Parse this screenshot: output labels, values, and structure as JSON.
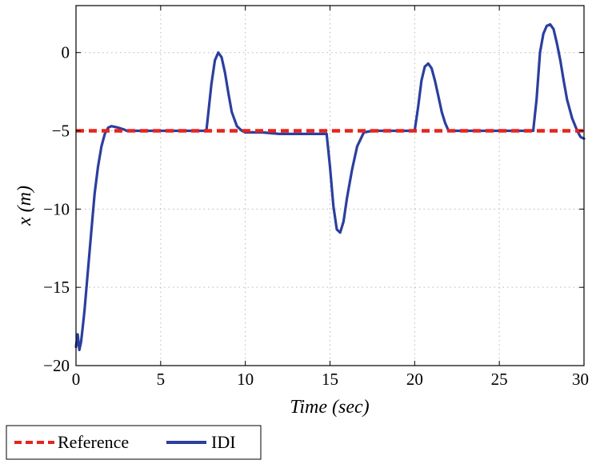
{
  "chart_data": {
    "type": "line",
    "title": "",
    "xlabel": "Time (sec)",
    "ylabel": "x (m)",
    "xlim": [
      0,
      30
    ],
    "ylim": [
      -20,
      3
    ],
    "xticks": [
      0,
      5,
      10,
      15,
      20,
      25,
      30
    ],
    "yticks": [
      -20,
      -15,
      -10,
      -5,
      0
    ],
    "xtick_labels": [
      "0",
      "5",
      "10",
      "15",
      "20",
      "25",
      "30"
    ],
    "ytick_labels": [
      "−20",
      "−15",
      "−10",
      "−5",
      "0"
    ],
    "grid": true,
    "legend_position": "bottom-left outside",
    "series": [
      {
        "name": "Reference",
        "color": "#e8231e",
        "style": "dashed",
        "x": [
          0,
          30
        ],
        "y": [
          -5,
          -5
        ]
      },
      {
        "name": "IDI",
        "color": "#2b3f9e",
        "style": "solid",
        "x": [
          0,
          0.1,
          0.2,
          0.3,
          0.4,
          0.5,
          0.7,
          0.9,
          1.1,
          1.3,
          1.5,
          1.7,
          1.9,
          2.1,
          2.5,
          2.8,
          3.0,
          4.0,
          5.0,
          6.0,
          7.0,
          7.7,
          7.8,
          8.0,
          8.2,
          8.4,
          8.6,
          8.8,
          9.0,
          9.2,
          9.5,
          9.8,
          10.0,
          10.5,
          11.0,
          12.0,
          13.0,
          14.0,
          14.8,
          15.0,
          15.2,
          15.4,
          15.6,
          15.8,
          16.0,
          16.3,
          16.6,
          17.0,
          17.5,
          18.0,
          19.0,
          20.0,
          20.2,
          20.4,
          20.6,
          20.8,
          21.0,
          21.2,
          21.4,
          21.6,
          21.8,
          22.0,
          22.5,
          23.0,
          24.0,
          25.0,
          26.0,
          27.0,
          27.2,
          27.4,
          27.6,
          27.8,
          28.0,
          28.2,
          28.4,
          28.6,
          28.8,
          29.0,
          29.3,
          29.6,
          29.8,
          30.0
        ],
        "y": [
          -18.8,
          -18.0,
          -19.0,
          -18.5,
          -17.5,
          -16.5,
          -14.0,
          -11.5,
          -9.0,
          -7.3,
          -6.0,
          -5.2,
          -4.8,
          -4.7,
          -4.8,
          -4.9,
          -5.0,
          -5.0,
          -5.0,
          -5.0,
          -5.0,
          -5.0,
          -4.0,
          -2.0,
          -0.5,
          0.0,
          -0.3,
          -1.3,
          -2.6,
          -3.8,
          -4.7,
          -5.0,
          -5.1,
          -5.1,
          -5.1,
          -5.2,
          -5.2,
          -5.2,
          -5.2,
          -7.3,
          -9.8,
          -11.3,
          -11.5,
          -10.8,
          -9.3,
          -7.5,
          -6.0,
          -5.1,
          -5.0,
          -5.0,
          -5.0,
          -5.0,
          -3.5,
          -1.8,
          -0.9,
          -0.7,
          -1.0,
          -1.8,
          -2.8,
          -3.8,
          -4.5,
          -5.0,
          -5.0,
          -5.0,
          -5.0,
          -5.0,
          -5.0,
          -5.0,
          -3.0,
          0.0,
          1.2,
          1.7,
          1.8,
          1.5,
          0.6,
          -0.5,
          -1.8,
          -3.0,
          -4.2,
          -5.0,
          -5.4,
          -5.5
        ]
      }
    ]
  }
}
